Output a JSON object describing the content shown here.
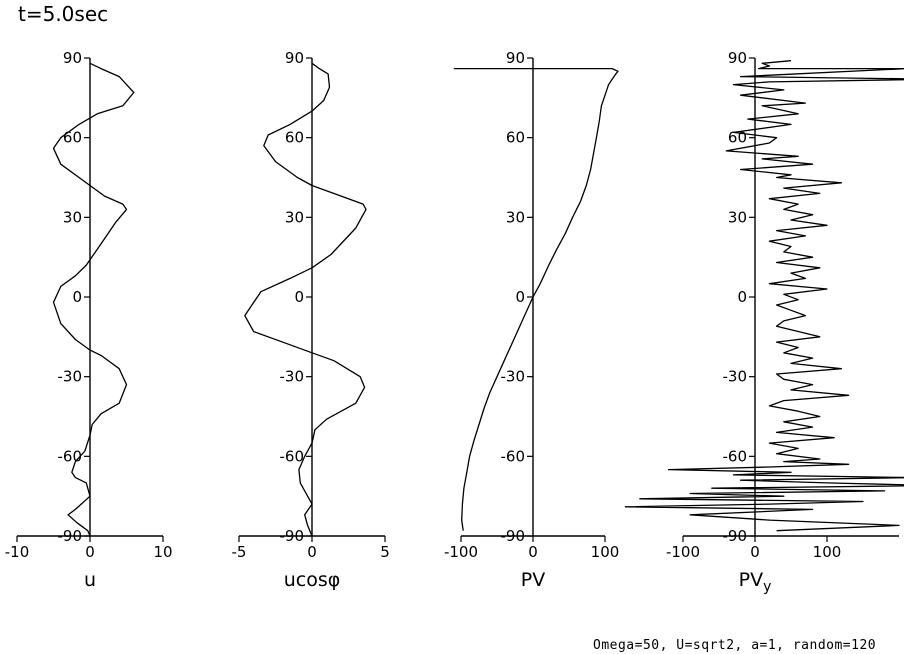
{
  "title": "t=5.0sec",
  "footer": "Omega=50, U=sqrt2, a=1, random=120",
  "colors": {
    "line": "#000000",
    "background": "#ffffff"
  },
  "chart_data": [
    {
      "type": "line",
      "xlabel": "u",
      "xlim": [
        -10,
        10
      ],
      "xticks": [
        -10,
        0,
        10
      ],
      "ylim": [
        -90,
        90
      ],
      "yticks": [
        -90,
        -60,
        -30,
        0,
        30,
        60,
        90
      ],
      "ytick_labels": [
        "-90",
        "-60",
        "-30",
        "0",
        "30",
        "60",
        "90"
      ],
      "series": [
        {
          "x": [
            0,
            1.5,
            4,
            6,
            4.5,
            1,
            -1.5,
            -4,
            -5,
            -4,
            -1.5,
            0,
            2,
            4.5,
            5,
            3.5,
            1,
            -0.5,
            -2,
            -4,
            -5,
            -4,
            -2,
            0,
            1.5,
            4,
            5,
            4,
            1.5,
            0.3,
            0,
            -0.7,
            -2,
            -2.5,
            -2,
            -0.5,
            0,
            -2,
            -3,
            -1.8,
            -0.3,
            0
          ],
          "y": [
            88,
            86,
            83,
            77,
            72,
            69,
            65,
            60,
            56,
            50,
            45,
            42,
            38,
            35,
            33,
            28,
            18,
            12,
            8,
            4,
            -2,
            -10,
            -16,
            -20,
            -22,
            -27,
            -33,
            -40,
            -44,
            -48,
            -52,
            -58,
            -62,
            -66,
            -68,
            -70,
            -75,
            -80,
            -82,
            -85,
            -88,
            -90
          ]
        }
      ]
    },
    {
      "type": "line",
      "xlabel": "ucosφ",
      "xlim": [
        -5,
        5
      ],
      "xticks": [
        -5,
        0,
        5
      ],
      "ylim": [
        -90,
        90
      ],
      "yticks": [
        -90,
        -60,
        -30,
        0,
        30,
        60,
        90
      ],
      "ytick_labels": [
        "-90",
        "-60",
        "-30",
        "0",
        "30",
        "60",
        "90"
      ],
      "series": [
        {
          "x": [
            0,
            0.5,
            1.1,
            1.2,
            0.8,
            0,
            -1.5,
            -3,
            -3.3,
            -2.5,
            -1,
            0,
            2,
            3.5,
            3.7,
            3,
            1.3,
            0,
            -1.5,
            -3.5,
            -4.6,
            -4,
            -1.5,
            0,
            1.5,
            3.3,
            3.6,
            3,
            1,
            0.2,
            0,
            -0.5,
            -0.9,
            -0.8,
            -0.3,
            0,
            -0.5,
            -0.3,
            0
          ],
          "y": [
            88,
            86,
            84,
            79,
            74,
            70,
            65,
            61,
            57,
            51,
            45,
            42,
            38,
            35,
            33,
            26,
            16,
            11,
            7,
            2,
            -7,
            -13,
            -18,
            -21,
            -24,
            -30,
            -34,
            -40,
            -46,
            -50,
            -55,
            -60,
            -65,
            -70,
            -75,
            -78,
            -82,
            -86,
            -90
          ]
        }
      ]
    },
    {
      "type": "line",
      "xlabel": "PV",
      "xlim": [
        -100,
        100
      ],
      "xticks": [
        -100,
        0,
        100
      ],
      "ylim": [
        -90,
        90
      ],
      "yticks": [
        -90,
        -60,
        -30,
        0,
        30,
        60,
        90
      ],
      "ytick_labels": [
        "-90",
        "-60",
        "-30",
        "0",
        "30",
        "60",
        "90"
      ],
      "series": [
        {
          "x": [
            -110,
            110,
            118,
            115,
            105,
            100,
            95,
            92,
            88,
            84,
            80,
            74,
            66,
            55,
            45,
            33,
            22,
            10,
            0,
            -10,
            -20,
            -30,
            -40,
            -50,
            -60,
            -68,
            -75,
            -82,
            -88,
            -92,
            -96,
            -98,
            -99,
            -97
          ],
          "y": [
            86,
            86,
            85,
            84,
            80,
            76,
            72,
            66,
            60,
            54,
            48,
            42,
            36,
            30,
            24,
            18,
            12,
            5,
            0,
            -6,
            -12,
            -18,
            -24,
            -30,
            -36,
            -42,
            -48,
            -54,
            -60,
            -66,
            -72,
            -78,
            -84,
            -88
          ]
        }
      ]
    },
    {
      "type": "line",
      "xlabel": "PVy",
      "xlabel_main": "PV",
      "xlabel_sub": "y",
      "xlim": [
        -100,
        200
      ],
      "xticks": [
        -100,
        0,
        100
      ],
      "ylim": [
        -90,
        90
      ],
      "yticks": [
        -90,
        -60,
        -30,
        0,
        30,
        60,
        90
      ],
      "ytick_labels": [
        "-90",
        "-60",
        "-30",
        "0",
        "30",
        "60",
        "90"
      ],
      "series": [
        {
          "x": [
            50,
            10,
            20,
            5,
            210,
            -20,
            250,
            20,
            -30,
            40,
            -20,
            70,
            10,
            60,
            -10,
            50,
            -30,
            30,
            20,
            -40,
            60,
            10,
            80,
            -20,
            50,
            30,
            120,
            40,
            90,
            20,
            60,
            40,
            80,
            50,
            100,
            30,
            70,
            20,
            50,
            40,
            80,
            30,
            90,
            50,
            70,
            20,
            100,
            40,
            60,
            30,
            50,
            70,
            40,
            30,
            60,
            90,
            30,
            60,
            40,
            80,
            50,
            120,
            30,
            40,
            80,
            50,
            130,
            40,
            20,
            60,
            90,
            40,
            80,
            30,
            110,
            20,
            60,
            30,
            90,
            40,
            130,
            20,
            -120,
            50,
            -30,
            220,
            -20,
            100,
            250,
            -60,
            180,
            -90,
            40,
            -160,
            150,
            20,
            -180,
            80,
            -90,
            20,
            200,
            30
          ],
          "y": [
            89,
            88,
            87,
            86,
            86,
            83,
            82,
            81,
            80,
            78,
            76,
            73,
            72,
            69,
            67,
            65,
            62,
            60,
            58,
            55,
            53,
            52,
            50,
            48,
            46,
            45,
            43,
            41,
            39,
            37,
            35,
            33,
            31,
            29,
            27,
            25,
            23,
            21,
            19,
            17,
            15,
            13,
            11,
            9,
            7,
            5,
            3,
            1,
            -1,
            -3,
            -5,
            -7,
            -9,
            -11,
            -13,
            -15,
            -17,
            -19,
            -21,
            -23,
            -25,
            -27,
            -29,
            -31,
            -33,
            -35,
            -37,
            -39,
            -41,
            -43,
            -45,
            -47,
            -49,
            -51,
            -53,
            -55,
            -57,
            -59,
            -61,
            -62,
            -63,
            -64,
            -65,
            -66,
            -67,
            -68,
            -69,
            -70,
            -71,
            -72,
            -73,
            -74,
            -75,
            -76,
            -77,
            -78,
            -79,
            -80,
            -82,
            -84,
            -86,
            -88
          ]
        }
      ]
    }
  ]
}
